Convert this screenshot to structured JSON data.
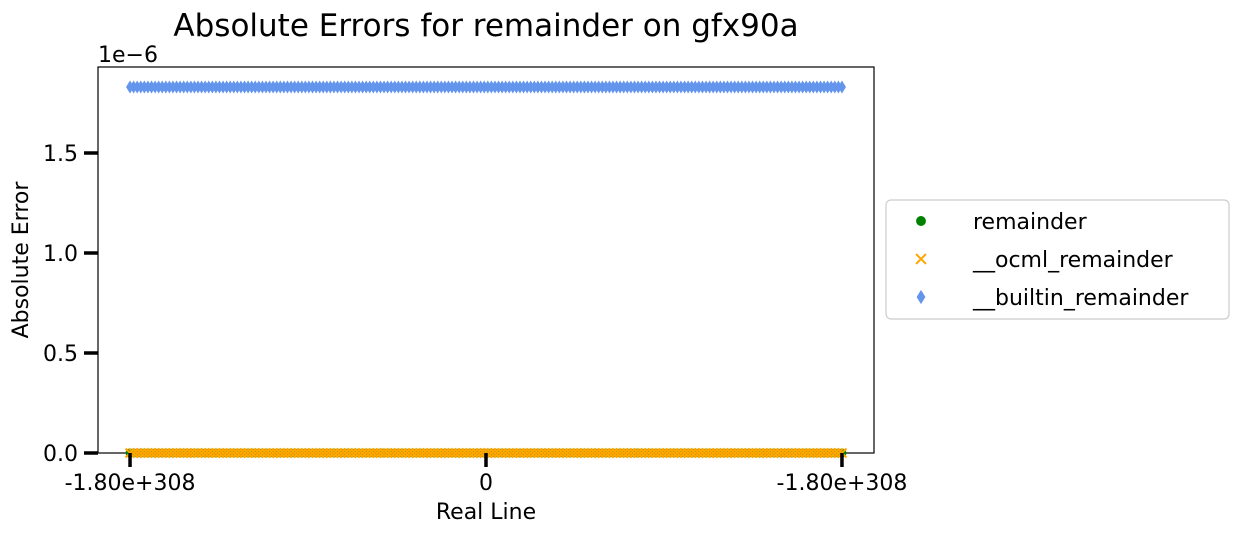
{
  "chart_data": {
    "type": "scatter",
    "title": "Absolute Errors for remainder on gfx90a",
    "xlabel": "Real Line",
    "ylabel": "Absolute Error",
    "y_offset_text": "1e−6",
    "xticks": [
      {
        "value": -1.0,
        "label": "-1.80e+308"
      },
      {
        "value": 0.0,
        "label": "0"
      },
      {
        "value": 1.0,
        "label": "-1.80e+308"
      }
    ],
    "yticks": [
      {
        "value": 0.0,
        "label": "0.0"
      },
      {
        "value": 0.5,
        "label": "0.5"
      },
      {
        "value": 1.0,
        "label": "1.0"
      },
      {
        "value": 1.5,
        "label": "1.5"
      }
    ],
    "xlim": [
      -1.09,
      1.09
    ],
    "ylim": [
      0.0,
      1.93
    ],
    "y_scale_factor": 1e-06,
    "grid": false,
    "legend_position": "right-outside",
    "series": [
      {
        "name": "remainder",
        "marker": "circle",
        "color": "#008000",
        "y_value": 0.0,
        "x_range": [
          -1.0,
          1.0
        ]
      },
      {
        "name": "__ocml_remainder",
        "marker": "x",
        "color": "#FFA500",
        "y_value": 0.0,
        "x_range": [
          -1.0,
          1.0
        ]
      },
      {
        "name": "__builtin_remainder",
        "marker": "diamond",
        "color": "#6495ED",
        "y_value": 1.83,
        "x_range": [
          -1.0,
          1.0
        ]
      }
    ]
  }
}
